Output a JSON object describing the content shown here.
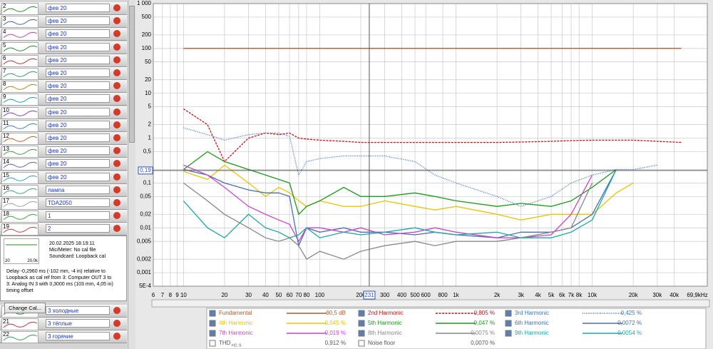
{
  "sidebar": {
    "measurements": [
      {
        "number": "2",
        "name": "фев 20"
      },
      {
        "number": "3",
        "name": "фев 20"
      },
      {
        "number": "4",
        "name": "фев 20"
      },
      {
        "number": "5",
        "name": "фев 20"
      },
      {
        "number": "6",
        "name": "фев 20"
      },
      {
        "number": "7",
        "name": "фев 20"
      },
      {
        "number": "8",
        "name": "фев 20"
      },
      {
        "number": "9",
        "name": "фев 20"
      },
      {
        "number": "10",
        "name": "фев 20"
      },
      {
        "number": "11",
        "name": "фев 20"
      },
      {
        "number": "12",
        "name": "фев 20"
      },
      {
        "number": "13",
        "name": "фев 20"
      },
      {
        "number": "14",
        "name": "фев 20"
      },
      {
        "number": "15",
        "name": "фев 20"
      },
      {
        "number": "16",
        "name": "лампа"
      },
      {
        "number": "17",
        "name": "TDA2050"
      },
      {
        "number": "18",
        "name": "1"
      },
      {
        "number": "19",
        "name": "2"
      }
    ],
    "info": {
      "thumb_left": "20",
      "thumb_right": "20,0k",
      "date": "20.02.2025 18:19:11",
      "mic": "Mic/Meter: No cal file",
      "soundcard": "Soundcard: Loopback cal",
      "delay": "Delay -0,2960 ms (-102 mm, -4 in) relative to Loopback as cal ref from 3: Computer OUT 3 to 3: Analog IN 3 with 0,3000 ms (103 mm, 4,05 in) timing offset"
    },
    "button": "Change Cal...",
    "lower": [
      {
        "number": "",
        "name": "3 холодные"
      },
      {
        "number": "21",
        "name": "3 тёплые"
      },
      {
        "number": "22",
        "name": "3 горячие"
      }
    ]
  },
  "chart_data": {
    "type": "line",
    "x_scale": "log",
    "y_scale": "log",
    "grid": true,
    "xlim": [
      6,
      69900
    ],
    "ylim": [
      0.0005,
      1000
    ],
    "xticks": [
      6,
      7,
      8,
      9,
      10,
      20,
      30,
      40,
      50,
      60,
      70,
      80,
      100,
      200,
      300,
      400,
      500,
      600,
      800,
      {
        "value": 1000,
        "label": "1k"
      },
      {
        "value": 2000,
        "label": "2k"
      },
      {
        "value": 3000,
        "label": "3k"
      },
      {
        "value": 4000,
        "label": "4k"
      },
      {
        "value": 5000,
        "label": "5k"
      },
      {
        "value": 6000,
        "label": "6k"
      },
      {
        "value": 7000,
        "label": "7k"
      },
      {
        "value": 8000,
        "label": "8k"
      },
      {
        "value": 10000,
        "label": "10k"
      },
      {
        "value": 20000,
        "label": "20k"
      },
      {
        "value": 30000,
        "label": "30k"
      },
      {
        "value": 40000,
        "label": "40k"
      },
      {
        "value": 69900,
        "label": "69,9kHz"
      }
    ],
    "yticks": [
      {
        "value": 1000,
        "label": "1 000"
      },
      500,
      200,
      100,
      50,
      20,
      10,
      5,
      2,
      1,
      {
        "value": 0.5,
        "label": "0,5"
      },
      {
        "value": 0.2,
        "label": "0,2"
      },
      {
        "value": 0.1,
        "label": "0,1"
      },
      {
        "value": 0.05,
        "label": "0,05"
      },
      {
        "value": 0.02,
        "label": "0,02"
      },
      {
        "value": 0.01,
        "label": "0,01"
      },
      {
        "value": 0.005,
        "label": "0,005"
      },
      {
        "value": 0.002,
        "label": "0,002"
      },
      {
        "value": 0.001,
        "label": "0,001"
      },
      {
        "value": 0.0005,
        "label": "5E-4"
      }
    ],
    "cursor": {
      "x": 231,
      "y": {
        "value": 0.19,
        "label": "0,19"
      }
    },
    "x": [
      10,
      15,
      20,
      30,
      40,
      50,
      60,
      70,
      80,
      100,
      150,
      200,
      300,
      500,
      700,
      1000,
      2000,
      3000,
      5000,
      7000,
      10000,
      15000,
      20000,
      30000,
      45000
    ],
    "series": [
      {
        "name": "Fundamental",
        "reading": "90,5 dB",
        "color": "#a85a32",
        "line_style": "solid",
        "values": [
          100,
          100,
          100,
          100,
          100,
          100,
          100,
          100,
          100,
          100,
          100,
          100,
          100,
          100,
          100,
          100,
          100,
          100,
          100,
          100,
          100,
          100,
          100,
          100,
          100
        ]
      },
      {
        "name": "2nd Harmonic",
        "reading": "0,805 %",
        "color": "#cc1010",
        "line_style": "dashed",
        "values": [
          4.5,
          2,
          0.3,
          1,
          1.3,
          1.2,
          1.3,
          1,
          0.95,
          0.9,
          0.85,
          0.8,
          0.8,
          0.8,
          0.8,
          0.8,
          0.8,
          0.82,
          0.85,
          0.88,
          0.9,
          0.9,
          0.9,
          0.85,
          0.8
        ]
      },
      {
        "name": "3rd Harmonic",
        "reading": "0,425 %",
        "color": "#3a6fd8",
        "line_style": "dotted",
        "values": [
          1.7,
          1.2,
          0.9,
          1.2,
          1.3,
          1.3,
          1.1,
          0.15,
          0.3,
          0.35,
          0.4,
          0.4,
          0.4,
          0.3,
          0.15,
          0.1,
          0.05,
          0.03,
          0.05,
          0.1,
          0.15,
          0.2,
          0.2,
          0.25,
          null
        ]
      },
      {
        "name": "4th Harmonic",
        "reading": "0,045 %",
        "color": "#e8c400",
        "line_style": "solid",
        "values": [
          0.18,
          0.12,
          0.25,
          0.1,
          0.05,
          0.08,
          0.06,
          0.04,
          0.03,
          0.04,
          0.03,
          0.03,
          0.04,
          0.03,
          0.025,
          0.03,
          0.02,
          0.015,
          0.02,
          0.02,
          0.02,
          0.06,
          0.1,
          null,
          null
        ]
      },
      {
        "name": "5th Harmonic",
        "reading": "0,047 %",
        "color": "#1a9a1a",
        "line_style": "solid",
        "values": [
          0.2,
          0.5,
          0.3,
          0.2,
          0.15,
          0.12,
          0.1,
          0.02,
          0.03,
          0.04,
          0.08,
          0.05,
          0.05,
          0.06,
          0.05,
          0.04,
          0.03,
          0.035,
          0.03,
          0.04,
          0.08,
          0.2,
          null,
          null,
          null
        ]
      },
      {
        "name": "6th Harmonic",
        "reading": "0,0072 %",
        "color": "#4a6fb0",
        "line_style": "solid",
        "values": [
          0.2,
          0.15,
          0.1,
          0.07,
          0.06,
          0.06,
          0.05,
          0.004,
          0.01,
          0.008,
          0.01,
          0.008,
          0.008,
          0.007,
          0.008,
          0.007,
          0.006,
          0.008,
          0.008,
          0.01,
          0.02,
          0.2,
          null,
          null,
          null
        ]
      },
      {
        "name": "7th Harmonic",
        "reading": "0,019 %",
        "color": "#cc44cc",
        "line_style": "solid",
        "values": [
          0.25,
          0.15,
          0.08,
          0.03,
          0.02,
          0.015,
          0.012,
          0.005,
          0.01,
          0.01,
          0.008,
          0.01,
          0.007,
          0.008,
          0.01,
          0.008,
          0.006,
          0.006,
          0.007,
          0.02,
          0.15,
          null,
          null,
          null,
          null
        ]
      },
      {
        "name": "8th Harmonic",
        "reading": "0,0075 %",
        "color": "#888888",
        "line_style": "solid",
        "values": [
          0.1,
          0.04,
          0.02,
          0.01,
          0.006,
          0.005,
          0.006,
          0.004,
          0.002,
          0.003,
          0.002,
          0.003,
          0.004,
          0.005,
          0.004,
          0.005,
          0.005,
          0.006,
          0.008,
          0.01,
          0.1,
          null,
          null,
          null,
          null
        ]
      },
      {
        "name": "9th Harmonic",
        "reading": "0,0054 %",
        "color": "#1aa8a8",
        "line_style": "solid",
        "values": [
          0.04,
          0.01,
          0.006,
          0.02,
          0.01,
          0.008,
          0.006,
          0.007,
          0.01,
          0.006,
          0.008,
          0.007,
          0.008,
          0.01,
          0.008,
          0.007,
          0.008,
          0.006,
          0.006,
          0.008,
          0.015,
          0.2,
          null,
          null,
          null
        ]
      }
    ],
    "legend_extra": [
      {
        "name": "THD",
        "subscript": "H2..9",
        "reading": "0,912 %"
      },
      {
        "name": "Noise floor",
        "reading": "0,0070 %"
      }
    ]
  }
}
